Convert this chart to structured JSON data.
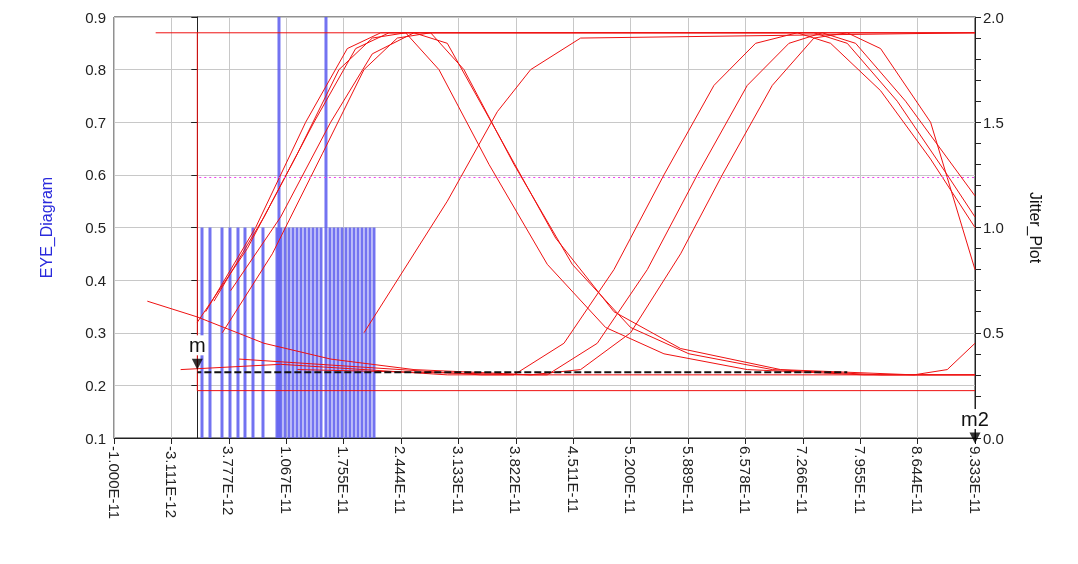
{
  "chart_data": {
    "type": "line",
    "ylabel": "EYE_Diagram",
    "y2label": "Jitter_Plot",
    "xlim": [
      -1e-11,
      9.333e-11
    ],
    "xticks": [
      {
        "value": -1e-11,
        "label": "-1.000E-11"
      },
      {
        "value": -3.111e-12,
        "label": "-3.111E-12"
      },
      {
        "value": 3.777e-12,
        "label": "3.777E-12"
      },
      {
        "value": 1.067e-11,
        "label": "1.067E-11"
      },
      {
        "value": 1.755e-11,
        "label": "1.755E-11"
      },
      {
        "value": 2.444e-11,
        "label": "2.444E-11"
      },
      {
        "value": 3.133e-11,
        "label": "3.133E-11"
      },
      {
        "value": 3.822e-11,
        "label": "3.822E-11"
      },
      {
        "value": 4.511e-11,
        "label": "4.511E-11"
      },
      {
        "value": 5.2e-11,
        "label": "5.200E-11"
      },
      {
        "value": 5.889e-11,
        "label": "5.889E-11"
      },
      {
        "value": 6.578e-11,
        "label": "6.578E-11"
      },
      {
        "value": 7.266e-11,
        "label": "7.266E-11"
      },
      {
        "value": 7.955e-11,
        "label": "7.955E-11"
      },
      {
        "value": 8.644e-11,
        "label": "8.644E-11"
      },
      {
        "value": 9.333e-11,
        "label": "9.333E-11"
      }
    ],
    "ylim": [
      0.1,
      0.9
    ],
    "yticks": [
      0.1,
      0.2,
      0.3,
      0.4,
      0.5,
      0.6,
      0.7,
      0.8,
      0.9
    ],
    "y2lim": [
      0,
      2
    ],
    "y2ticks": [
      {
        "value": 0,
        "label": "0.0"
      },
      {
        "value": 0.5,
        "label": "0.5"
      },
      {
        "value": 1,
        "label": "1.0"
      },
      {
        "value": 1.5,
        "label": "1.5"
      },
      {
        "value": 2,
        "label": "2.0"
      }
    ],
    "grid": true,
    "marker": "none",
    "annotations": [
      {
        "text": "m",
        "x": 0,
        "y": 0.24
      },
      {
        "text": "m2",
        "x": 9.333e-11,
        "y": 0.1
      }
    ],
    "series": [
      {
        "type": "bar",
        "axis": "y2",
        "color": "#5a5aee",
        "x": [
          5.6e-13,
          1.52e-12,
          2.96e-12,
          3.92e-12,
          4.88e-12,
          5.72e-12,
          6.68e-12,
          7.88e-12,
          9.56e-12,
          9.8e-12,
          1.004e-11,
          1.052e-11,
          1.1e-11,
          1.148e-11,
          1.196e-11,
          1.244e-11,
          1.292e-11,
          1.34e-11,
          1.388e-11,
          1.436e-11,
          1.484e-11,
          1.544e-11,
          1.592e-11,
          1.64e-11,
          1.688e-11,
          1.736e-11,
          1.784e-11,
          1.832e-11,
          1.88e-11,
          1.928e-11,
          1.976e-11,
          2.024e-11,
          2.072e-11,
          2.12e-11
        ],
        "values": [
          1,
          1,
          1,
          1,
          1,
          1,
          1,
          1,
          1,
          2,
          1,
          1,
          1,
          1,
          1,
          1,
          1,
          1,
          1,
          1,
          1,
          2,
          1,
          1,
          1,
          1,
          1,
          1,
          1,
          1,
          1,
          1,
          1,
          1
        ]
      },
      {
        "color": "#ee1111",
        "x": [
          0,
          6e-12,
          1.2e-11,
          1.7e-11,
          2.1e-11,
          2.5e-11,
          2.9e-11,
          3.5e-11,
          4.2e-11,
          4.9e-11,
          5.6e-11,
          6.6e-11,
          8e-11,
          9.333e-11
        ],
        "values": [
          0.32,
          0.46,
          0.64,
          0.8,
          0.86,
          0.87,
          0.8,
          0.62,
          0.43,
          0.31,
          0.26,
          0.23,
          0.22,
          0.22
        ]
      },
      {
        "color": "#ee1111",
        "x": [
          3e-12,
          9e-12,
          1.5e-11,
          2e-11,
          2.4e-11,
          2.8e-11,
          3.2e-11,
          3.8e-11,
          4.5e-11,
          5.2e-11,
          5.9e-11,
          6.9e-11,
          8.2e-11,
          9.333e-11
        ],
        "values": [
          0.3,
          0.45,
          0.64,
          0.8,
          0.86,
          0.87,
          0.8,
          0.62,
          0.43,
          0.31,
          0.26,
          0.23,
          0.22,
          0.22
        ]
      },
      {
        "color": "#ee1111",
        "x": [
          4e-12,
          1e-11,
          1.6e-11,
          2.1e-11,
          2.6e-11,
          3e-11,
          3.6e-11,
          4.3e-11,
          5e-11,
          5.8e-11,
          7e-11,
          8.6e-11,
          9e-11,
          9.333e-11
        ],
        "values": [
          0.38,
          0.52,
          0.7,
          0.83,
          0.87,
          0.85,
          0.68,
          0.48,
          0.34,
          0.27,
          0.23,
          0.22,
          0.23,
          0.28
        ]
      },
      {
        "color": "#ee1111",
        "x": [
          1e-12,
          7e-12,
          1.3e-11,
          1.8e-11,
          2.2e-11,
          9.333e-11
        ],
        "values": [
          0.34,
          0.5,
          0.7,
          0.84,
          0.87,
          0.87
        ]
      },
      {
        "color": "#ee1111",
        "x": [
          -5e-12,
          9.333e-11
        ],
        "values": [
          0.87,
          0.87
        ]
      },
      {
        "color": "#ee1111",
        "x": [
          2e-12,
          8e-12,
          1.4e-11,
          1.9e-11,
          2.3e-11,
          7.4e-11,
          7.8e-11,
          8.4e-11,
          9e-11,
          9.333e-11
        ],
        "values": [
          0.36,
          0.52,
          0.7,
          0.84,
          0.87,
          0.87,
          0.85,
          0.74,
          0.6,
          0.52
        ]
      },
      {
        "color": "#ee1111",
        "x": [
          -2e-12,
          1e-11,
          3e-11,
          3.8e-11,
          4.4e-11,
          5e-11,
          5.6e-11,
          6.2e-11,
          6.7e-11,
          7.2e-11,
          7.6e-11,
          8.2e-11,
          8.8e-11,
          9.333e-11
        ],
        "values": [
          0.23,
          0.24,
          0.22,
          0.22,
          0.28,
          0.42,
          0.6,
          0.77,
          0.85,
          0.87,
          0.85,
          0.76,
          0.63,
          0.5
        ]
      },
      {
        "color": "#ee1111",
        "x": [
          5e-12,
          3.4e-11,
          4.2e-11,
          4.8e-11,
          5.4e-11,
          6e-11,
          6.6e-11,
          7.1e-11,
          7.5e-11,
          7.9e-11,
          8.5e-11,
          9.333e-11
        ],
        "values": [
          0.25,
          0.22,
          0.22,
          0.28,
          0.42,
          0.6,
          0.77,
          0.85,
          0.87,
          0.85,
          0.74,
          0.56
        ]
      },
      {
        "color": "#ee1111",
        "x": [
          1.2e-11,
          4e-11,
          4.6e-11,
          5.2e-11,
          5.8e-11,
          6.3e-11,
          6.9e-11,
          7.4e-11,
          7.8e-11,
          8.2e-11,
          8.8e-11,
          9.333e-11
        ],
        "values": [
          0.23,
          0.22,
          0.23,
          0.3,
          0.45,
          0.6,
          0.77,
          0.86,
          0.87,
          0.84,
          0.7,
          0.42
        ]
      },
      {
        "color": "#ee1111",
        "x": [
          -6e-12,
          0,
          8e-12,
          1.6e-11,
          2.6e-11,
          4e-11,
          9.333e-11
        ],
        "values": [
          0.36,
          0.33,
          0.28,
          0.25,
          0.23,
          0.22,
          0.22
        ]
      },
      {
        "color": "#ee1111",
        "x": [
          2e-11,
          3e-11,
          3.6e-11,
          4e-11,
          4.6e-11,
          9.333e-11
        ],
        "values": [
          0.3,
          0.55,
          0.72,
          0.8,
          0.86,
          0.87
        ]
      },
      {
        "color": "#ee1111",
        "x": [
          0,
          0,
          9.333e-11
        ],
        "values": [
          0.87,
          0.19,
          0.19
        ]
      },
      {
        "type": "scatter",
        "color": "#000000",
        "marker": "triangle",
        "x": [
          0,
          9.333e-11
        ],
        "values": [
          0.24,
          0.1
        ]
      },
      {
        "color": "#ee44ee",
        "line_style": "dotted",
        "x": [
          0,
          9.333e-11
        ],
        "values": [
          0.595,
          0.595
        ]
      },
      {
        "color": "#111111",
        "line_style": "dashed",
        "x": [
          0,
          7.8e-11
        ],
        "values": [
          0.225,
          0.225
        ]
      }
    ]
  }
}
